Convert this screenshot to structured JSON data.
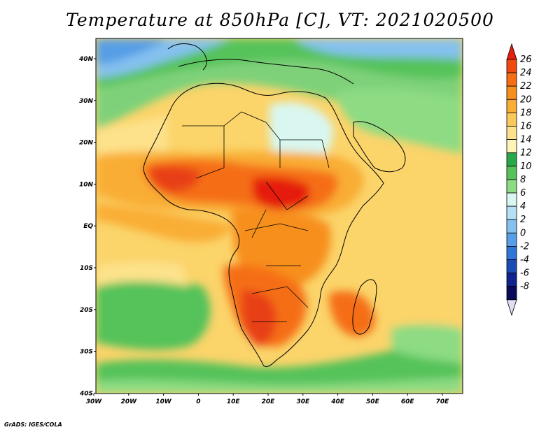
{
  "title": "Temperature at 850hPa [C], VT: 2021020500",
  "credit": "GrADS: IGES/COLA",
  "map": {
    "lon_ticks": [
      "30W",
      "20W",
      "10W",
      "0",
      "10E",
      "20E",
      "30E",
      "40E",
      "50E",
      "60E",
      "70E"
    ],
    "lat_ticks": [
      "40N",
      "30N",
      "20N",
      "10N",
      "EQ",
      "10S",
      "20S",
      "30S",
      "40S"
    ],
    "lon_range": [
      -30,
      75
    ],
    "lat_range": [
      -40,
      44
    ]
  },
  "colorbar": {
    "labels": [
      "26",
      "24",
      "22",
      "20",
      "18",
      "16",
      "14",
      "12",
      "10",
      "8",
      "6",
      "4",
      "2",
      "0",
      "-2",
      "-4",
      "-6",
      "-8"
    ],
    "colors": [
      "#e51e0f",
      "#f04a10",
      "#f56e14",
      "#f78f1c",
      "#f9ad34",
      "#fbc959",
      "#fde28b",
      "#fef4b8",
      "#28a84a",
      "#55c25a",
      "#8ddb83",
      "#d9f7f0",
      "#b4e0f6",
      "#85c1ef",
      "#569ee6",
      "#2f76d6",
      "#1b4bb5",
      "#0f228f",
      "#0a0a5a",
      "#e0ddf5"
    ]
  }
}
